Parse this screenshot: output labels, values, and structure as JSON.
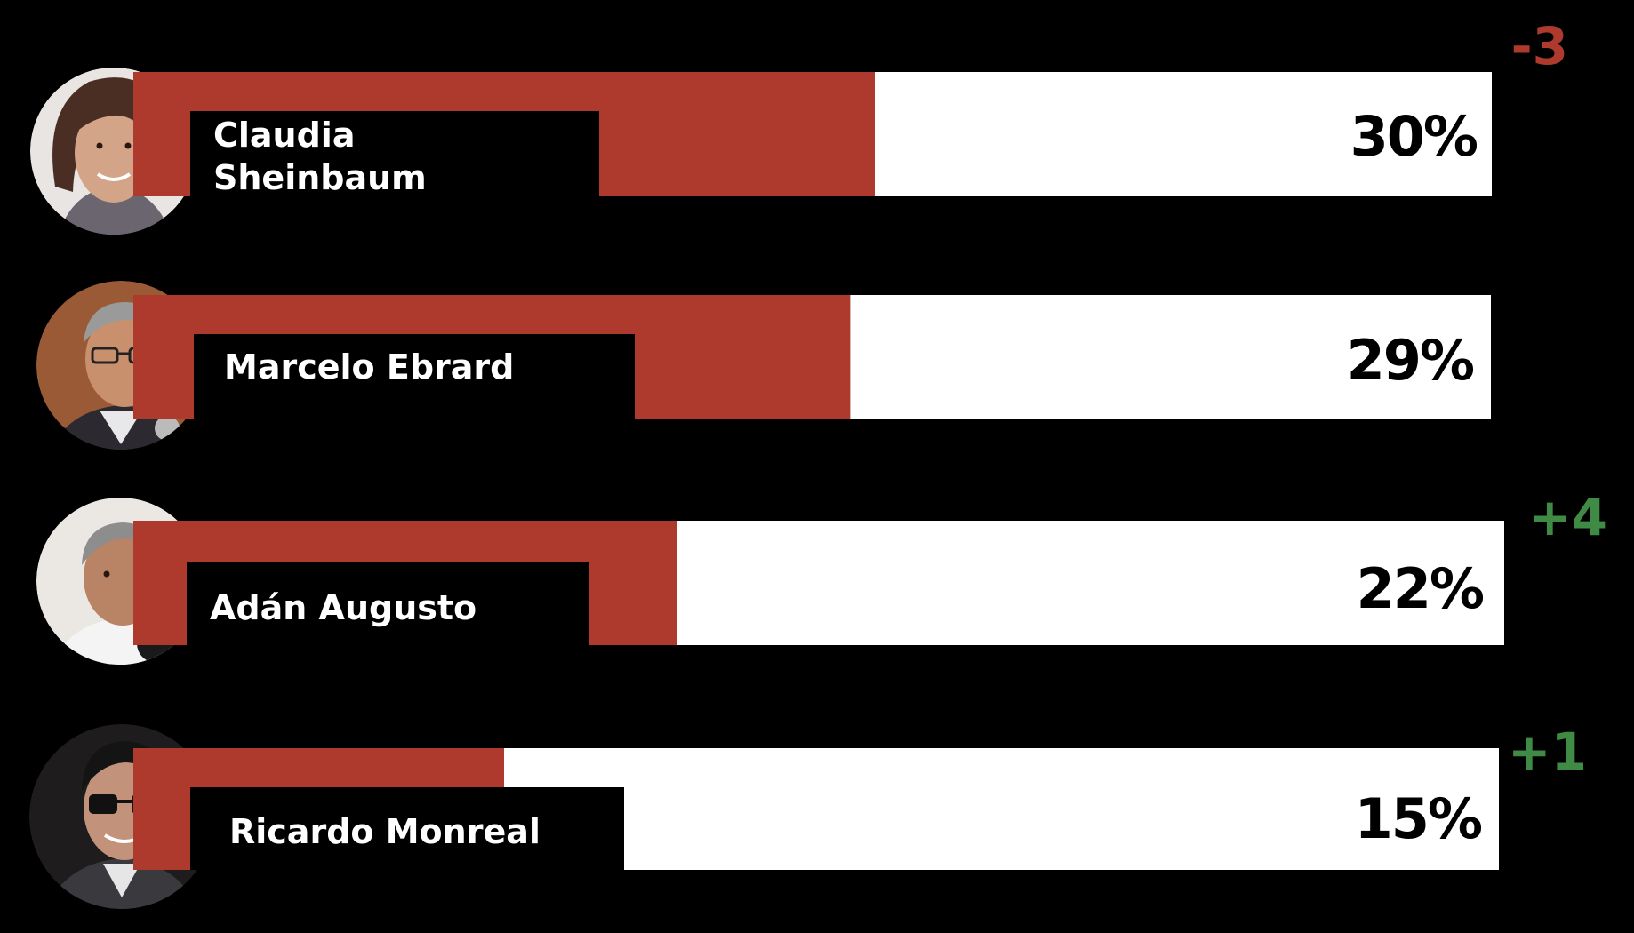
{
  "colors": {
    "background": "#000000",
    "bar_red": "#ad3a2d",
    "bar_white": "#ffffff",
    "label_box": "#000000",
    "name_text": "#ffffff",
    "value_text": "#000000",
    "change_negative": "#ad3a2d",
    "change_positive": "#3f8a45"
  },
  "chart_data": {
    "type": "bar",
    "orientation": "horizontal",
    "title": "",
    "xlabel": "",
    "ylabel": "",
    "xlim": [
      0,
      50
    ],
    "grid": false,
    "legend": "none",
    "categories": [
      "Claudia Sheinbaum",
      "Marcelo Ebrard",
      "Adán Augusto",
      "Ricardo Monreal"
    ],
    "values": [
      30,
      29,
      22,
      15
    ],
    "value_labels": [
      "30%",
      "29%",
      "22%",
      "15%"
    ],
    "changes": [
      "-3",
      "",
      "+4",
      "+1"
    ],
    "bars": [
      {
        "name_lines": [
          "Claudia",
          "Sheinbaum"
        ],
        "value": 30,
        "value_label": "30%",
        "change": "-3",
        "change_sign": "negative",
        "photo_icon": "woman-portrait-icon"
      },
      {
        "name_lines": [
          "Marcelo Ebrard"
        ],
        "value": 29,
        "value_label": "29%",
        "change": "",
        "change_sign": "none",
        "photo_icon": "man-glasses-portrait-icon"
      },
      {
        "name_lines": [
          "Adán Augusto"
        ],
        "value": 22,
        "value_label": "22%",
        "change": "+4",
        "change_sign": "positive",
        "photo_icon": "man-microphone-portrait-icon"
      },
      {
        "name_lines": [
          "Ricardo Monreal"
        ],
        "value": 15,
        "value_label": "15%",
        "change": "+1",
        "change_sign": "positive",
        "photo_icon": "man-dark-glasses-portrait-icon"
      }
    ]
  }
}
